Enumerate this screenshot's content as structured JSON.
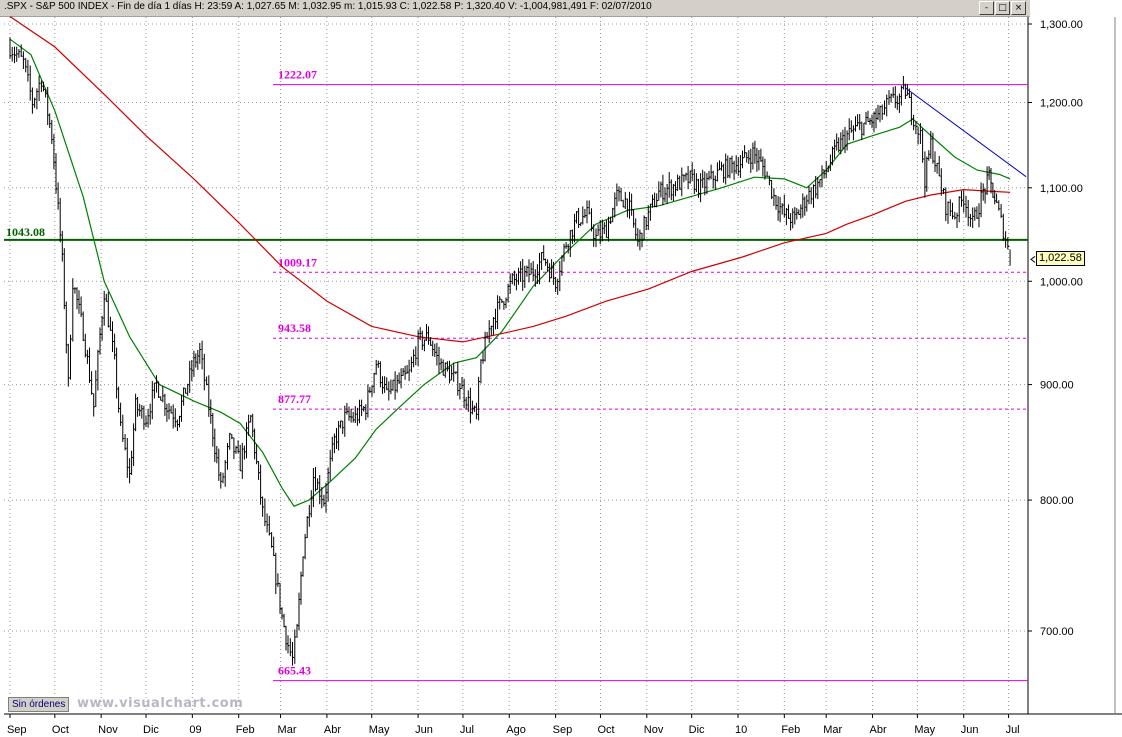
{
  "window": {
    "title": ".SPX - S&P 500 INDEX - Fin de día 1 días H: 23:59  A: 1,027.65  M: 1,032.95  m: 1,015.93  C: 1,022.58  P: 1,320.40  V: -1,004,981,491  F: 02/07/2010",
    "buttons": [
      "-",
      "□",
      "×"
    ]
  },
  "toolbar": {
    "orders_button": "Sin órdenes",
    "watermark": "www.visualchart.com"
  },
  "last_price_label": "1,022.58",
  "colors": {
    "price": "#000000",
    "ma_short": "#008000",
    "ma_long": "#d00000",
    "fib": "#e000e0",
    "support": "#006000",
    "trend": "#0000c0",
    "grid": "#999999"
  },
  "chart_data": {
    "type": "line",
    "title": "",
    "xlabel": "",
    "ylabel": "",
    "ylim": [
      640,
      1320
    ],
    "y_scale": "log",
    "grid": true,
    "y_ticks": [
      {
        "value": 1300,
        "label": "1,300.00"
      },
      {
        "value": 1200,
        "label": "1,200.00"
      },
      {
        "value": 1100,
        "label": "1,100.00"
      },
      {
        "value": 1000,
        "label": "1,000.00"
      },
      {
        "value": 900,
        "label": "900.00"
      },
      {
        "value": 800,
        "label": "800.00"
      },
      {
        "value": 700,
        "label": "700.00"
      }
    ],
    "x_ticks": [
      {
        "label": "Sep",
        "date": "2008-09-01"
      },
      {
        "label": "Oct",
        "date": "2008-10-01"
      },
      {
        "label": "Nov",
        "date": "2008-11-01"
      },
      {
        "label": "Dic",
        "date": "2008-12-01"
      },
      {
        "label": "09",
        "date": "2009-01-01"
      },
      {
        "label": "Feb",
        "date": "2009-02-01"
      },
      {
        "label": "Mar",
        "date": "2009-03-01"
      },
      {
        "label": "Abr",
        "date": "2009-04-01"
      },
      {
        "label": "May",
        "date": "2009-05-01"
      },
      {
        "label": "Jun",
        "date": "2009-06-01"
      },
      {
        "label": "Jul",
        "date": "2009-07-01"
      },
      {
        "label": "Ago",
        "date": "2009-08-01"
      },
      {
        "label": "Sep",
        "date": "2009-09-01"
      },
      {
        "label": "Oct",
        "date": "2009-10-01"
      },
      {
        "label": "Nov",
        "date": "2009-11-01"
      },
      {
        "label": "Dic",
        "date": "2009-12-01"
      },
      {
        "label": "10",
        "date": "2010-01-01"
      },
      {
        "label": "Feb",
        "date": "2010-02-01"
      },
      {
        "label": "Mar",
        "date": "2010-03-01"
      },
      {
        "label": "Abr",
        "date": "2010-04-01"
      },
      {
        "label": "May",
        "date": "2010-05-01"
      },
      {
        "label": "Jun",
        "date": "2010-06-01"
      },
      {
        "label": "Jul",
        "date": "2010-07-01"
      }
    ],
    "series": [
      {
        "role": "price",
        "x": [
          "2008-09-01",
          "2008-09-10",
          "2008-09-16",
          "2008-09-22",
          "2008-09-29",
          "2008-10-06",
          "2008-10-10",
          "2008-10-13",
          "2008-10-20",
          "2008-10-27",
          "2008-11-03",
          "2008-11-10",
          "2008-11-14",
          "2008-11-20",
          "2008-11-24",
          "2008-12-01",
          "2008-12-08",
          "2008-12-15",
          "2008-12-22",
          "2009-01-02",
          "2009-01-06",
          "2009-01-12",
          "2009-01-20",
          "2009-01-26",
          "2009-02-02",
          "2009-02-09",
          "2009-02-17",
          "2009-02-23",
          "2009-03-02",
          "2009-03-06",
          "2009-03-09",
          "2009-03-12",
          "2009-03-16",
          "2009-03-23",
          "2009-03-30",
          "2009-04-06",
          "2009-04-13",
          "2009-04-20",
          "2009-04-27",
          "2009-05-04",
          "2009-05-11",
          "2009-05-18",
          "2009-05-26",
          "2009-06-01",
          "2009-06-08",
          "2009-06-15",
          "2009-06-22",
          "2009-06-29",
          "2009-07-06",
          "2009-07-10",
          "2009-07-13",
          "2009-07-20",
          "2009-07-27",
          "2009-08-03",
          "2009-08-10",
          "2009-08-17",
          "2009-08-24",
          "2009-09-01",
          "2009-09-08",
          "2009-09-15",
          "2009-09-22",
          "2009-09-28",
          "2009-10-05",
          "2009-10-12",
          "2009-10-19",
          "2009-10-26",
          "2009-11-02",
          "2009-11-09",
          "2009-11-16",
          "2009-11-23",
          "2009-11-30",
          "2009-12-07",
          "2009-12-14",
          "2009-12-21",
          "2010-01-04",
          "2010-01-11",
          "2010-01-19",
          "2010-01-25",
          "2010-02-01",
          "2010-02-08",
          "2010-02-16",
          "2010-02-22",
          "2010-03-01",
          "2010-03-08",
          "2010-03-15",
          "2010-03-22",
          "2010-03-29",
          "2010-04-06",
          "2010-04-12",
          "2010-04-19",
          "2010-04-23",
          "2010-04-27",
          "2010-05-03",
          "2010-05-06",
          "2010-05-10",
          "2010-05-17",
          "2010-05-20",
          "2010-05-26",
          "2010-06-01",
          "2010-06-07",
          "2010-06-14",
          "2010-06-18",
          "2010-06-23",
          "2010-06-29",
          "2010-07-02"
        ],
        "values": [
          1270,
          1250,
          1200,
          1230,
          1160,
          1020,
          900,
          1000,
          950,
          880,
          990,
          920,
          860,
          820,
          880,
          870,
          900,
          880,
          870,
          920,
          930,
          880,
          810,
          850,
          830,
          870,
          790,
          760,
          710,
          690,
          680,
          700,
          760,
          820,
          800,
          850,
          870,
          870,
          880,
          920,
          890,
          900,
          910,
          940,
          945,
          920,
          910,
          900,
          880,
          870,
          920,
          960,
          980,
          1000,
          1005,
          1010,
          1025,
          1000,
          1040,
          1065,
          1070,
          1045,
          1055,
          1090,
          1085,
          1040,
          1070,
          1095,
          1100,
          1105,
          1110,
          1100,
          1110,
          1120,
          1130,
          1140,
          1120,
          1090,
          1070,
          1065,
          1090,
          1100,
          1120,
          1145,
          1160,
          1170,
          1175,
          1185,
          1200,
          1205,
          1215,
          1190,
          1160,
          1110,
          1150,
          1100,
          1080,
          1070,
          1090,
          1060,
          1095,
          1110,
          1080,
          1045,
          1022.58
        ]
      },
      {
        "role": "ma_short",
        "x": [
          "2008-09-01",
          "2008-09-15",
          "2008-10-01",
          "2008-10-20",
          "2008-11-03",
          "2008-11-20",
          "2008-12-10",
          "2009-01-02",
          "2009-01-20",
          "2009-02-02",
          "2009-02-17",
          "2009-03-02",
          "2009-03-10",
          "2009-03-20",
          "2009-04-03",
          "2009-04-20",
          "2009-05-04",
          "2009-05-20",
          "2009-06-05",
          "2009-06-25",
          "2009-07-10",
          "2009-07-27",
          "2009-08-17",
          "2009-09-08",
          "2009-09-28",
          "2009-10-19",
          "2009-11-09",
          "2009-11-30",
          "2009-12-21",
          "2010-01-12",
          "2010-02-01",
          "2010-02-16",
          "2010-03-01",
          "2010-03-15",
          "2010-04-01",
          "2010-04-19",
          "2010-04-28",
          "2010-05-10",
          "2010-05-26",
          "2010-06-10",
          "2010-06-25",
          "2010-07-02"
        ],
        "values": [
          1280,
          1260,
          1190,
          1090,
          1000,
          945,
          900,
          885,
          875,
          865,
          840,
          810,
          795,
          800,
          815,
          835,
          860,
          880,
          900,
          920,
          925,
          950,
          995,
          1030,
          1060,
          1075,
          1080,
          1090,
          1100,
          1112,
          1110,
          1100,
          1120,
          1150,
          1160,
          1170,
          1180,
          1160,
          1135,
          1120,
          1115,
          1110
        ]
      },
      {
        "role": "ma_long",
        "x": [
          "2008-09-01",
          "2008-10-01",
          "2008-11-03",
          "2008-12-01",
          "2009-01-02",
          "2009-02-02",
          "2009-03-02",
          "2009-04-01",
          "2009-05-01",
          "2009-06-01",
          "2009-07-01",
          "2009-07-27",
          "2009-08-17",
          "2009-09-08",
          "2009-10-05",
          "2009-11-02",
          "2009-12-01",
          "2010-01-04",
          "2010-02-01",
          "2010-03-01",
          "2010-03-15",
          "2010-04-01",
          "2010-04-23",
          "2010-05-10",
          "2010-06-01",
          "2010-06-20",
          "2010-07-02"
        ],
        "values": [
          1310,
          1270,
          1210,
          1160,
          1110,
          1060,
          1015,
          980,
          955,
          945,
          940,
          948,
          955,
          965,
          980,
          992,
          1010,
          1025,
          1040,
          1050,
          1060,
          1070,
          1085,
          1092,
          1098,
          1096,
          1095
        ]
      }
    ],
    "annotations": [
      {
        "label": "1222.07",
        "value": 1222.07,
        "style": "solid",
        "color": "#e000e0"
      },
      {
        "label": "1009.17",
        "value": 1009.17,
        "style": "dashed",
        "color": "#e000e0"
      },
      {
        "label": "943.58",
        "value": 943.58,
        "style": "dashed",
        "color": "#e000e0"
      },
      {
        "label": "877.77",
        "value": 877.77,
        "style": "dashed",
        "color": "#e000e0"
      },
      {
        "label": "665.43",
        "value": 665.43,
        "style": "solid",
        "color": "#e000e0"
      },
      {
        "label": "1043.08",
        "value": 1043.08,
        "style": "solid-thick",
        "color": "#006000"
      }
    ],
    "trendline": {
      "from": {
        "date": "2010-04-23",
        "value": 1218
      },
      "to": {
        "date": "2010-07-02",
        "value": 1108
      }
    }
  }
}
